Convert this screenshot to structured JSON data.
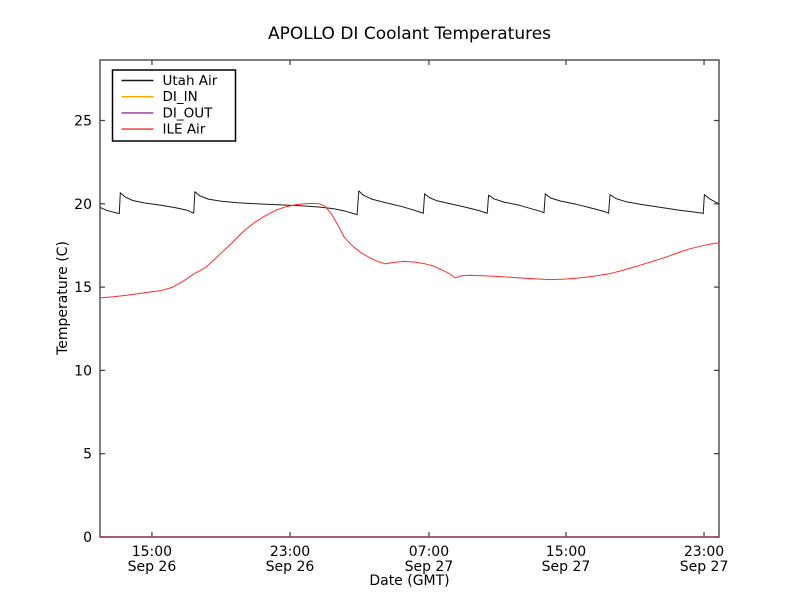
{
  "figure": {
    "background": "#ffffff"
  },
  "chart_data": {
    "type": "line",
    "title": "APOLLO DI Coolant Temperatures",
    "xlabel": "Date (GMT)",
    "ylabel": "Temperature (C)",
    "x_unit": "hours since 2000-09-26 12:00 GMT (approx left edge of axis)",
    "xlim": [
      0,
      36
    ],
    "ylim": [
      0,
      28.63
    ],
    "grid": false,
    "legend_position": "upper left",
    "axis_color": "#3a3a3a",
    "bottom_axis_overlap_note": "DI_IN and DI_OUT are flat at 0 C and overlap the bottom spine, tinting it plum",
    "yticks": [
      {
        "value": 0,
        "label": "0"
      },
      {
        "value": 5,
        "label": "5"
      },
      {
        "value": 10,
        "label": "10"
      },
      {
        "value": 15,
        "label": "15"
      },
      {
        "value": 20,
        "label": "20"
      },
      {
        "value": 25,
        "label": "25"
      }
    ],
    "xticks": [
      {
        "h": 3.02,
        "line1": "15:00",
        "line2": "Sep 26"
      },
      {
        "h": 11.05,
        "line1": "23:00",
        "line2": "Sep 26"
      },
      {
        "h": 19.13,
        "line1": "07:00",
        "line2": "Sep 27"
      },
      {
        "h": 27.1,
        "line1": "15:00",
        "line2": "Sep 27"
      },
      {
        "h": 35.13,
        "line1": "23:00",
        "line2": "Sep 27"
      }
    ],
    "series": [
      {
        "name": "Utah Air",
        "color": "#1a1a1a",
        "width": 1,
        "opacity": 1,
        "points": [
          [
            0,
            19.78
          ],
          [
            0.35,
            19.62
          ],
          [
            0.7,
            19.52
          ],
          [
            1.0,
            19.44
          ],
          [
            1.12,
            19.41
          ],
          [
            1.18,
            20.66
          ],
          [
            1.45,
            20.42
          ],
          [
            1.9,
            20.2
          ],
          [
            2.6,
            20.05
          ],
          [
            3.5,
            19.92
          ],
          [
            4.4,
            19.76
          ],
          [
            5.1,
            19.6
          ],
          [
            5.35,
            19.48
          ],
          [
            5.45,
            19.44
          ],
          [
            5.52,
            20.72
          ],
          [
            5.8,
            20.48
          ],
          [
            6.3,
            20.28
          ],
          [
            7.0,
            20.16
          ],
          [
            8.0,
            20.06
          ],
          [
            9.2,
            19.99
          ],
          [
            10.5,
            19.93
          ],
          [
            11.8,
            19.87
          ],
          [
            12.8,
            19.8
          ],
          [
            13.6,
            19.7
          ],
          [
            14.3,
            19.55
          ],
          [
            14.7,
            19.42
          ],
          [
            14.95,
            19.35
          ],
          [
            15.05,
            20.78
          ],
          [
            15.3,
            20.52
          ],
          [
            15.8,
            20.28
          ],
          [
            16.6,
            20.07
          ],
          [
            17.5,
            19.85
          ],
          [
            18.2,
            19.64
          ],
          [
            18.7,
            19.47
          ],
          [
            18.8,
            19.43
          ],
          [
            18.88,
            20.6
          ],
          [
            19.15,
            20.38
          ],
          [
            19.6,
            20.18
          ],
          [
            20.4,
            19.99
          ],
          [
            21.3,
            19.78
          ],
          [
            22.1,
            19.57
          ],
          [
            22.45,
            19.45
          ],
          [
            22.52,
            19.42
          ],
          [
            22.6,
            20.52
          ],
          [
            22.9,
            20.3
          ],
          [
            23.5,
            20.1
          ],
          [
            24.4,
            19.91
          ],
          [
            25.2,
            19.67
          ],
          [
            25.7,
            19.52
          ],
          [
            25.82,
            19.46
          ],
          [
            25.9,
            20.6
          ],
          [
            26.2,
            20.35
          ],
          [
            26.8,
            20.16
          ],
          [
            27.7,
            19.97
          ],
          [
            28.7,
            19.71
          ],
          [
            29.4,
            19.51
          ],
          [
            29.58,
            19.43
          ],
          [
            29.66,
            20.55
          ],
          [
            30.0,
            20.32
          ],
          [
            30.6,
            20.12
          ],
          [
            31.6,
            19.94
          ],
          [
            32.7,
            19.77
          ],
          [
            33.7,
            19.61
          ],
          [
            34.6,
            19.5
          ],
          [
            35.0,
            19.44
          ],
          [
            35.08,
            19.41
          ],
          [
            35.15,
            20.55
          ],
          [
            35.45,
            20.3
          ],
          [
            35.8,
            20.1
          ],
          [
            36,
            20.0
          ]
        ]
      },
      {
        "name": "DI_IN",
        "color": "#ffa500",
        "width": 1.2,
        "opacity": 1,
        "points": [
          [
            0,
            0
          ],
          [
            36,
            0
          ]
        ]
      },
      {
        "name": "DI_OUT",
        "color": "#800080",
        "width": 1.2,
        "opacity": 0.8,
        "points": [
          [
            0,
            0
          ],
          [
            36,
            0
          ]
        ]
      },
      {
        "name": "ILE Air",
        "color": "#ff2d2d",
        "width": 1,
        "opacity": 1,
        "points": [
          [
            0,
            14.35
          ],
          [
            0.8,
            14.42
          ],
          [
            1.6,
            14.52
          ],
          [
            2.4,
            14.63
          ],
          [
            3.0,
            14.72
          ],
          [
            3.5,
            14.78
          ],
          [
            4.2,
            14.98
          ],
          [
            4.8,
            15.33
          ],
          [
            5.4,
            15.75
          ],
          [
            6.2,
            16.22
          ],
          [
            7.0,
            17.0
          ],
          [
            7.7,
            17.68
          ],
          [
            8.4,
            18.4
          ],
          [
            9.0,
            18.88
          ],
          [
            9.6,
            19.28
          ],
          [
            10.2,
            19.6
          ],
          [
            10.8,
            19.82
          ],
          [
            11.4,
            19.94
          ],
          [
            11.9,
            20.0
          ],
          [
            12.4,
            20.02
          ],
          [
            12.8,
            19.99
          ],
          [
            13.1,
            19.85
          ],
          [
            13.5,
            19.32
          ],
          [
            13.9,
            18.6
          ],
          [
            14.2,
            18.0
          ],
          [
            14.6,
            17.55
          ],
          [
            15.1,
            17.12
          ],
          [
            15.7,
            16.75
          ],
          [
            16.2,
            16.52
          ],
          [
            16.6,
            16.4
          ],
          [
            17.1,
            16.48
          ],
          [
            17.7,
            16.54
          ],
          [
            18.3,
            16.5
          ],
          [
            18.9,
            16.4
          ],
          [
            19.4,
            16.26
          ],
          [
            19.9,
            16.02
          ],
          [
            20.3,
            15.82
          ],
          [
            20.65,
            15.55
          ],
          [
            21.0,
            15.68
          ],
          [
            21.5,
            15.71
          ],
          [
            22.3,
            15.68
          ],
          [
            23.3,
            15.63
          ],
          [
            24.3,
            15.56
          ],
          [
            25.2,
            15.5
          ],
          [
            26.2,
            15.45
          ],
          [
            27.0,
            15.48
          ],
          [
            27.9,
            15.55
          ],
          [
            28.7,
            15.65
          ],
          [
            29.6,
            15.8
          ],
          [
            30.4,
            16.0
          ],
          [
            31.2,
            16.25
          ],
          [
            32.0,
            16.5
          ],
          [
            32.8,
            16.76
          ],
          [
            33.6,
            17.05
          ],
          [
            34.3,
            17.3
          ],
          [
            34.9,
            17.45
          ],
          [
            35.4,
            17.56
          ],
          [
            36,
            17.66
          ]
        ]
      }
    ],
    "legend": {
      "entries": [
        "Utah Air",
        "DI_IN",
        "DI_OUT",
        "ILE Air"
      ]
    }
  }
}
